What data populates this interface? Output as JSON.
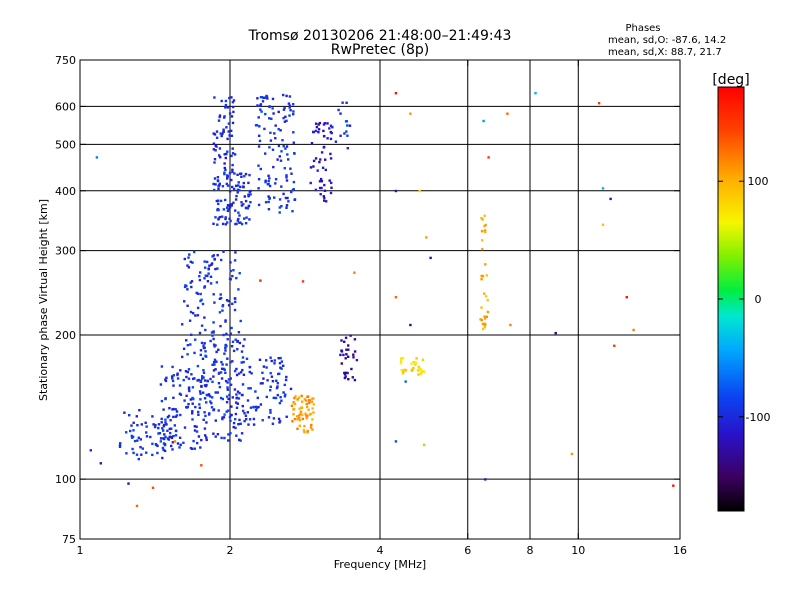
{
  "chart_data": {
    "type": "scatter",
    "title": "Tromsø 20130206 21:48:00–21:49:43",
    "subtitle": "RwPretec (8p)",
    "stats": {
      "heading": "Phases",
      "line_o": "mean, sd,O: -87.6, 14.2",
      "line_x": "mean, sd,X:  88.7, 21.7"
    },
    "xlabel": "Frequency [MHz]",
    "ylabel": "Stationary phase Virtual Height [km]",
    "x_scale": "log",
    "y_scale": "log",
    "xlim": [
      1,
      16
    ],
    "ylim": [
      75,
      750
    ],
    "x_ticks": [
      1,
      2,
      4,
      6,
      8,
      10,
      16
    ],
    "y_ticks": [
      75,
      100,
      200,
      300,
      400,
      500,
      600,
      750
    ],
    "x_grid": [
      2,
      4,
      6,
      8,
      10
    ],
    "y_grid": [
      100,
      200,
      300,
      400,
      500,
      600
    ],
    "grid": true,
    "colorbar": {
      "label": "[deg]",
      "range": [
        -180,
        180
      ],
      "ticks": [
        100,
        0,
        -100
      ],
      "colormap": "rainbow"
    },
    "clusters": [
      {
        "f": [
          1.2,
          1.55
        ],
        "h": [
          110,
          140
        ],
        "phase": -95,
        "n": 70
      },
      {
        "f": [
          1.45,
          1.75
        ],
        "h": [
          115,
          175
        ],
        "phase": -95,
        "n": 110
      },
      {
        "f": [
          1.6,
          1.8
        ],
        "h": [
          180,
          300
        ],
        "phase": -95,
        "n": 60
      },
      {
        "f": [
          1.75,
          2.15
        ],
        "h": [
          120,
          200
        ],
        "phase": -95,
        "n": 170
      },
      {
        "f": [
          1.8,
          2.1
        ],
        "h": [
          200,
          300
        ],
        "phase": -95,
        "n": 60
      },
      {
        "f": [
          1.85,
          2.2
        ],
        "h": [
          340,
          440
        ],
        "phase": -95,
        "n": 110
      },
      {
        "f": [
          1.85,
          2.05
        ],
        "h": [
          440,
          630
        ],
        "phase": -100,
        "n": 60
      },
      {
        "f": [
          2.15,
          2.65
        ],
        "h": [
          130,
          180
        ],
        "phase": -95,
        "n": 80
      },
      {
        "f": [
          2.25,
          2.7
        ],
        "h": [
          360,
          640
        ],
        "phase": -95,
        "n": 120
      },
      {
        "f": [
          2.65,
          2.95
        ],
        "h": [
          125,
          150
        ],
        "phase": 110,
        "n": 60
      },
      {
        "f": [
          2.9,
          3.2
        ],
        "h": [
          380,
          560
        ],
        "phase": -115,
        "n": 55
      },
      {
        "f": [
          3.3,
          3.6
        ],
        "h": [
          160,
          200
        ],
        "phase": -130,
        "n": 30
      },
      {
        "f": [
          3.2,
          3.5
        ],
        "h": [
          480,
          620
        ],
        "phase": -95,
        "n": 15
      },
      {
        "f": [
          4.4,
          4.9
        ],
        "h": [
          165,
          180
        ],
        "phase": 80,
        "n": 30
      },
      {
        "f": [
          6.35,
          6.6
        ],
        "h": [
          195,
          360
        ],
        "phase": 100,
        "n": 30
      }
    ],
    "scattered_points": [
      {
        "f": 1.05,
        "h": 115,
        "phase": -100
      },
      {
        "f": 1.08,
        "h": 470,
        "phase": -60
      },
      {
        "f": 1.1,
        "h": 108,
        "phase": -115
      },
      {
        "f": 1.25,
        "h": 98,
        "phase": -120
      },
      {
        "f": 1.3,
        "h": 88,
        "phase": 130
      },
      {
        "f": 1.4,
        "h": 96,
        "phase": 140
      },
      {
        "f": 1.55,
        "h": 120,
        "phase": 120
      },
      {
        "f": 1.75,
        "h": 107,
        "phase": 140
      },
      {
        "f": 2.3,
        "h": 260,
        "phase": 160
      },
      {
        "f": 2.8,
        "h": 259,
        "phase": 150
      },
      {
        "f": 3.55,
        "h": 270,
        "phase": 120
      },
      {
        "f": 4.3,
        "h": 640,
        "phase": 170
      },
      {
        "f": 4.6,
        "h": 580,
        "phase": 110
      },
      {
        "f": 4.8,
        "h": 400,
        "phase": 80
      },
      {
        "f": 4.3,
        "h": 400,
        "phase": -120
      },
      {
        "f": 4.95,
        "h": 320,
        "phase": 110
      },
      {
        "f": 5.05,
        "h": 290,
        "phase": -130
      },
      {
        "f": 4.3,
        "h": 240,
        "phase": 130
      },
      {
        "f": 4.6,
        "h": 210,
        "phase": -140
      },
      {
        "f": 4.5,
        "h": 160,
        "phase": -70
      },
      {
        "f": 4.3,
        "h": 120,
        "phase": -80
      },
      {
        "f": 4.9,
        "h": 118,
        "phase": 40
      },
      {
        "f": 6.45,
        "h": 560,
        "phase": -50
      },
      {
        "f": 6.6,
        "h": 470,
        "phase": 150
      },
      {
        "f": 6.5,
        "h": 100,
        "phase": -120
      },
      {
        "f": 7.2,
        "h": 580,
        "phase": 130
      },
      {
        "f": 7.3,
        "h": 210,
        "phase": 120
      },
      {
        "f": 8.2,
        "h": 640,
        "phase": -40
      },
      {
        "f": 9.0,
        "h": 202,
        "phase": -140
      },
      {
        "f": 9.7,
        "h": 113,
        "phase": 110
      },
      {
        "f": 11.0,
        "h": 610,
        "phase": 150
      },
      {
        "f": 11.2,
        "h": 405,
        "phase": -40
      },
      {
        "f": 11.6,
        "h": 385,
        "phase": -120
      },
      {
        "f": 11.2,
        "h": 340,
        "phase": 90
      },
      {
        "f": 12.5,
        "h": 240,
        "phase": 170
      },
      {
        "f": 12.9,
        "h": 205,
        "phase": 120
      },
      {
        "f": 11.8,
        "h": 190,
        "phase": 150
      },
      {
        "f": 15.5,
        "h": 97,
        "phase": 170
      }
    ]
  }
}
